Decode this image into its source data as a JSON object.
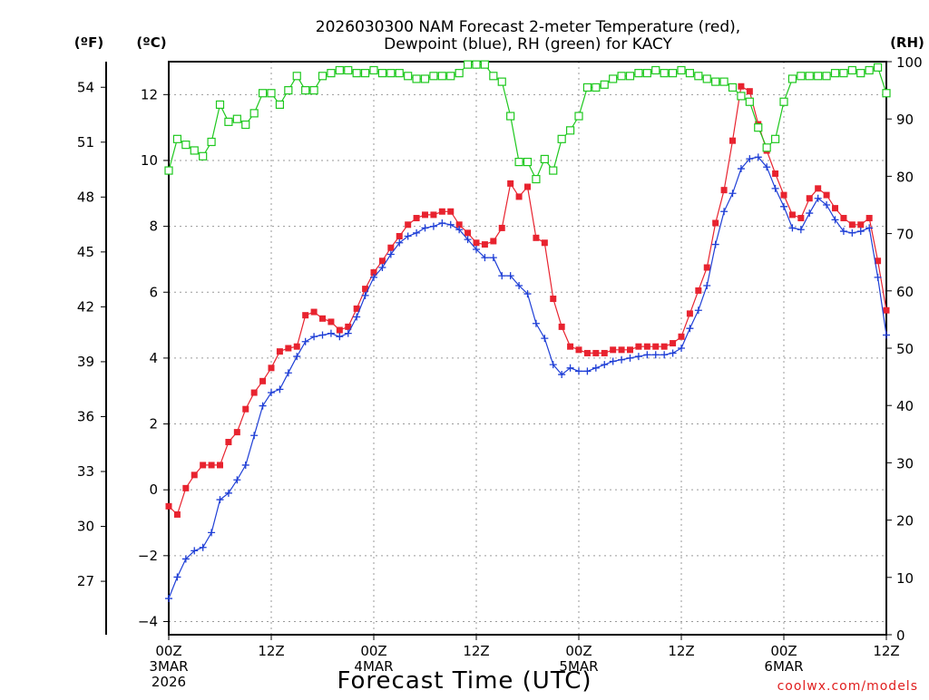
{
  "chart_data": {
    "type": "line",
    "title_line1": "2026030300 NAM Forecast 2-meter Temperature (red),",
    "title_line2": "Dewpoint (blue), RH (green) for KACY",
    "xlabel": "Forecast Time (UTC)",
    "credit": "coolwx.com/models",
    "left_c_unit": "(ºC)",
    "left_f_unit": "(ºF)",
    "right_unit": "(RH)",
    "x_ticks": [
      {
        "hour": 0,
        "label": "00Z",
        "sub1": "3MAR",
        "sub2": "2026"
      },
      {
        "hour": 12,
        "label": "12Z",
        "sub1": "",
        "sub2": ""
      },
      {
        "hour": 24,
        "label": "00Z",
        "sub1": "4MAR",
        "sub2": ""
      },
      {
        "hour": 36,
        "label": "12Z",
        "sub1": "",
        "sub2": ""
      },
      {
        "hour": 48,
        "label": "00Z",
        "sub1": "5MAR",
        "sub2": ""
      },
      {
        "hour": 60,
        "label": "12Z",
        "sub1": "",
        "sub2": ""
      },
      {
        "hour": 72,
        "label": "00Z",
        "sub1": "6MAR",
        "sub2": ""
      },
      {
        "hour": 84,
        "label": "12Z",
        "sub1": "",
        "sub2": ""
      }
    ],
    "xlim": [
      0,
      84
    ],
    "ylim_c": [
      -4.4,
      13.0
    ],
    "ylim_rh": [
      0,
      100
    ],
    "y_ticks_c": [
      -4,
      -2,
      0,
      2,
      4,
      6,
      8,
      10,
      12
    ],
    "y_ticks_f": [
      27,
      30,
      33,
      36,
      39,
      42,
      45,
      48,
      51,
      54
    ],
    "y_ticks_rh": [
      0,
      10,
      20,
      30,
      40,
      50,
      60,
      70,
      80,
      90,
      100
    ],
    "grid": true,
    "colors": {
      "temp": "#e8232f",
      "dewpoint": "#1f3fd6",
      "rh": "#1ec81e",
      "credit": "#e01e1e"
    },
    "series": [
      {
        "name": "Temperature",
        "unit": "C",
        "marker": "filled-square",
        "values": [
          [
            0,
            -0.5
          ],
          [
            1,
            -0.75
          ],
          [
            2,
            0.05
          ],
          [
            3,
            0.45
          ],
          [
            4,
            0.75
          ],
          [
            5,
            0.75
          ],
          [
            6,
            0.75
          ],
          [
            7,
            1.45
          ],
          [
            8,
            1.75
          ],
          [
            9,
            2.45
          ],
          [
            10,
            2.95
          ],
          [
            11,
            3.3
          ],
          [
            12,
            3.7
          ],
          [
            13,
            4.2
          ],
          [
            14,
            4.3
          ],
          [
            15,
            4.35
          ],
          [
            16,
            5.3
          ],
          [
            17,
            5.4
          ],
          [
            18,
            5.2
          ],
          [
            19,
            5.1
          ],
          [
            20,
            4.85
          ],
          [
            21,
            4.95
          ],
          [
            22,
            5.5
          ],
          [
            23,
            6.1
          ],
          [
            24,
            6.6
          ],
          [
            25,
            6.95
          ],
          [
            26,
            7.35
          ],
          [
            27,
            7.7
          ],
          [
            28,
            8.05
          ],
          [
            29,
            8.25
          ],
          [
            30,
            8.35
          ],
          [
            31,
            8.35
          ],
          [
            32,
            8.45
          ],
          [
            33,
            8.45
          ],
          [
            34,
            8.05
          ],
          [
            35,
            7.8
          ],
          [
            36,
            7.5
          ],
          [
            37,
            7.45
          ],
          [
            38,
            7.55
          ],
          [
            39,
            7.95
          ],
          [
            40,
            9.3
          ],
          [
            41,
            8.9
          ],
          [
            42,
            9.2
          ],
          [
            43,
            7.65
          ],
          [
            44,
            7.5
          ],
          [
            45,
            5.8
          ],
          [
            46,
            4.95
          ],
          [
            47,
            4.35
          ],
          [
            48,
            4.25
          ],
          [
            49,
            4.15
          ],
          [
            50,
            4.15
          ],
          [
            51,
            4.15
          ],
          [
            52,
            4.25
          ],
          [
            53,
            4.25
          ],
          [
            54,
            4.25
          ],
          [
            55,
            4.35
          ],
          [
            56,
            4.35
          ],
          [
            57,
            4.35
          ],
          [
            58,
            4.35
          ],
          [
            59,
            4.45
          ],
          [
            60,
            4.65
          ],
          [
            61,
            5.35
          ],
          [
            62,
            6.05
          ],
          [
            63,
            6.75
          ],
          [
            64,
            8.1
          ],
          [
            65,
            9.1
          ],
          [
            66,
            10.6
          ],
          [
            67,
            12.25
          ],
          [
            68,
            12.1
          ],
          [
            69,
            11.1
          ],
          [
            70,
            10.3
          ],
          [
            71,
            9.6
          ],
          [
            72,
            8.95
          ],
          [
            73,
            8.35
          ],
          [
            74,
            8.25
          ],
          [
            75,
            8.85
          ],
          [
            76,
            9.15
          ],
          [
            77,
            8.95
          ],
          [
            78,
            8.55
          ],
          [
            79,
            8.25
          ],
          [
            80,
            8.05
          ],
          [
            81,
            8.05
          ],
          [
            82,
            8.25
          ],
          [
            83,
            6.95
          ],
          [
            84,
            5.45
          ]
        ]
      },
      {
        "name": "Dewpoint",
        "unit": "C",
        "marker": "plus",
        "values": [
          [
            0,
            -3.3
          ],
          [
            1,
            -2.65
          ],
          [
            2,
            -2.1
          ],
          [
            3,
            -1.85
          ],
          [
            4,
            -1.75
          ],
          [
            5,
            -1.3
          ],
          [
            6,
            -0.3
          ],
          [
            7,
            -0.1
          ],
          [
            8,
            0.3
          ],
          [
            9,
            0.75
          ],
          [
            10,
            1.65
          ],
          [
            11,
            2.55
          ],
          [
            12,
            2.95
          ],
          [
            13,
            3.05
          ],
          [
            14,
            3.55
          ],
          [
            15,
            4.05
          ],
          [
            16,
            4.5
          ],
          [
            17,
            4.65
          ],
          [
            18,
            4.7
          ],
          [
            19,
            4.75
          ],
          [
            20,
            4.65
          ],
          [
            21,
            4.75
          ],
          [
            22,
            5.25
          ],
          [
            23,
            5.9
          ],
          [
            24,
            6.45
          ],
          [
            25,
            6.75
          ],
          [
            26,
            7.15
          ],
          [
            27,
            7.5
          ],
          [
            28,
            7.7
          ],
          [
            29,
            7.8
          ],
          [
            30,
            7.95
          ],
          [
            31,
            8.0
          ],
          [
            32,
            8.1
          ],
          [
            33,
            8.05
          ],
          [
            34,
            7.9
          ],
          [
            35,
            7.6
          ],
          [
            36,
            7.3
          ],
          [
            37,
            7.05
          ],
          [
            38,
            7.05
          ],
          [
            39,
            6.5
          ],
          [
            40,
            6.5
          ],
          [
            41,
            6.2
          ],
          [
            42,
            5.95
          ],
          [
            43,
            5.05
          ],
          [
            44,
            4.6
          ],
          [
            45,
            3.8
          ],
          [
            46,
            3.5
          ],
          [
            47,
            3.7
          ],
          [
            48,
            3.6
          ],
          [
            49,
            3.6
          ],
          [
            50,
            3.7
          ],
          [
            51,
            3.8
          ],
          [
            52,
            3.9
          ],
          [
            53,
            3.95
          ],
          [
            54,
            4.0
          ],
          [
            55,
            4.05
          ],
          [
            56,
            4.1
          ],
          [
            57,
            4.1
          ],
          [
            58,
            4.1
          ],
          [
            59,
            4.15
          ],
          [
            60,
            4.3
          ],
          [
            61,
            4.9
          ],
          [
            62,
            5.45
          ],
          [
            63,
            6.2
          ],
          [
            64,
            7.45
          ],
          [
            65,
            8.45
          ],
          [
            66,
            9.0
          ],
          [
            67,
            9.75
          ],
          [
            68,
            10.05
          ],
          [
            69,
            10.1
          ],
          [
            70,
            9.8
          ],
          [
            71,
            9.15
          ],
          [
            72,
            8.6
          ],
          [
            73,
            7.95
          ],
          [
            74,
            7.9
          ],
          [
            75,
            8.4
          ],
          [
            76,
            8.85
          ],
          [
            77,
            8.65
          ],
          [
            78,
            8.2
          ],
          [
            79,
            7.85
          ],
          [
            80,
            7.8
          ],
          [
            81,
            7.85
          ],
          [
            82,
            7.95
          ],
          [
            83,
            6.45
          ],
          [
            84,
            4.7
          ]
        ]
      },
      {
        "name": "RH",
        "unit": "%",
        "marker": "open-square",
        "values": [
          [
            0,
            81
          ],
          [
            1,
            86.5
          ],
          [
            2,
            85.5
          ],
          [
            3,
            84.5
          ],
          [
            4,
            83.5
          ],
          [
            5,
            86
          ],
          [
            6,
            92.5
          ],
          [
            7,
            89.5
          ],
          [
            8,
            90
          ],
          [
            9,
            89
          ],
          [
            10,
            91
          ],
          [
            11,
            94.5
          ],
          [
            12,
            94.5
          ],
          [
            13,
            92.5
          ],
          [
            14,
            95
          ],
          [
            15,
            97.5
          ],
          [
            16,
            95
          ],
          [
            17,
            95
          ],
          [
            18,
            97.5
          ],
          [
            19,
            98
          ],
          [
            20,
            98.5
          ],
          [
            21,
            98.5
          ],
          [
            22,
            98
          ],
          [
            23,
            98
          ],
          [
            24,
            98.5
          ],
          [
            25,
            98
          ],
          [
            26,
            98
          ],
          [
            27,
            98
          ],
          [
            28,
            97.5
          ],
          [
            29,
            97
          ],
          [
            30,
            97
          ],
          [
            31,
            97.5
          ],
          [
            32,
            97.5
          ],
          [
            33,
            97.5
          ],
          [
            34,
            98
          ],
          [
            35,
            99.5
          ],
          [
            36,
            99.5
          ],
          [
            37,
            99.5
          ],
          [
            38,
            97.5
          ],
          [
            39,
            96.5
          ],
          [
            40,
            90.5
          ],
          [
            41,
            82.5
          ],
          [
            42,
            82.5
          ],
          [
            43,
            79.5
          ],
          [
            44,
            83
          ],
          [
            45,
            81
          ],
          [
            46,
            86.5
          ],
          [
            47,
            88
          ],
          [
            48,
            90.5
          ],
          [
            49,
            95.5
          ],
          [
            50,
            95.5
          ],
          [
            51,
            96
          ],
          [
            52,
            97
          ],
          [
            53,
            97.5
          ],
          [
            54,
            97.5
          ],
          [
            55,
            98
          ],
          [
            56,
            98
          ],
          [
            57,
            98.5
          ],
          [
            58,
            98
          ],
          [
            59,
            98
          ],
          [
            60,
            98.5
          ],
          [
            61,
            98
          ],
          [
            62,
            97.5
          ],
          [
            63,
            97
          ],
          [
            64,
            96.5
          ],
          [
            65,
            96.5
          ],
          [
            66,
            95.5
          ],
          [
            67,
            94
          ],
          [
            68,
            93
          ],
          [
            69,
            88.5
          ],
          [
            70,
            85
          ],
          [
            71,
            86.5
          ],
          [
            72,
            93
          ],
          [
            73,
            97
          ],
          [
            74,
            97.5
          ],
          [
            75,
            97.5
          ],
          [
            76,
            97.5
          ],
          [
            77,
            97.5
          ],
          [
            78,
            98
          ],
          [
            79,
            98
          ],
          [
            80,
            98.5
          ],
          [
            81,
            98
          ],
          [
            82,
            98.5
          ],
          [
            83,
            99
          ],
          [
            84,
            94.5
          ]
        ]
      }
    ]
  }
}
